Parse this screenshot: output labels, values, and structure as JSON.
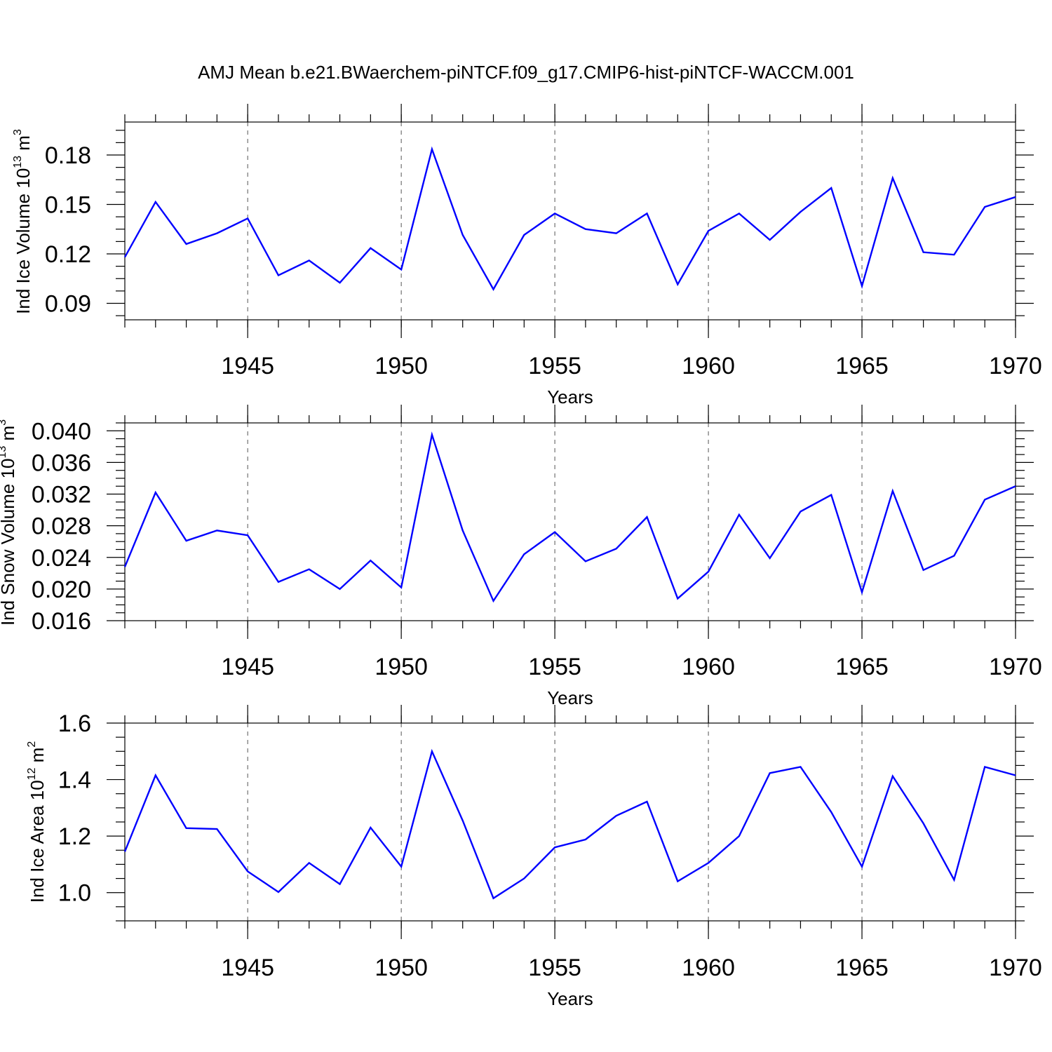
{
  "chart_data": [
    {
      "type": "line",
      "title": "AMJ Mean b.e21.BWaerchem-piNTCF.f09_g17.CMIP6-hist-piNTCF-WACCM.001",
      "ylabel": {
        "text": "Ind Ice Volume 10",
        "exponent": "13",
        "unit": " m",
        "unit_exponent": "3"
      },
      "xlabel": "Years",
      "xlim": [
        1941,
        1970
      ],
      "ylim": [
        0.08,
        0.2
      ],
      "yticks": [
        "0.09",
        "0.12",
        "0.15",
        "0.18"
      ],
      "xticks": [
        "1945",
        "1950",
        "1955",
        "1960",
        "1965",
        "1970"
      ],
      "grid": "dashed vertical at major x ticks",
      "x": [
        1941,
        1942,
        1943,
        1944,
        1945,
        1946,
        1947,
        1948,
        1949,
        1950,
        1951,
        1952,
        1953,
        1954,
        1955,
        1956,
        1957,
        1958,
        1959,
        1960,
        1961,
        1962,
        1963,
        1964,
        1965,
        1966,
        1967,
        1968,
        1969,
        1970
      ],
      "series": [
        {
          "name": "Ind Ice Volume",
          "color": "#0000ff",
          "values": [
            0.118,
            0.1515,
            0.126,
            0.1325,
            0.1415,
            0.107,
            0.116,
            0.1025,
            0.1235,
            0.1105,
            0.1835,
            0.1315,
            0.0985,
            0.1315,
            0.1445,
            0.135,
            0.1325,
            0.1445,
            0.1015,
            0.134,
            0.1445,
            0.1285,
            0.1455,
            0.16,
            0.1005,
            0.166,
            0.121,
            0.1195,
            0.1485,
            0.1545
          ]
        }
      ]
    },
    {
      "type": "line",
      "ylabel": {
        "text": "Ind Snow Volume 10",
        "exponent": "13",
        "unit": " m",
        "unit_exponent": "3"
      },
      "xlabel": "Years",
      "xlim": [
        1941,
        1970
      ],
      "ylim": [
        0.016,
        0.041
      ],
      "yticks": [
        "0.016",
        "0.020",
        "0.024",
        "0.028",
        "0.032",
        "0.036",
        "0.040"
      ],
      "xticks": [
        "1945",
        "1950",
        "1955",
        "1960",
        "1965",
        "1970"
      ],
      "grid": "dashed vertical at major x ticks",
      "x": [
        1941,
        1942,
        1943,
        1944,
        1945,
        1946,
        1947,
        1948,
        1949,
        1950,
        1951,
        1952,
        1953,
        1954,
        1955,
        1956,
        1957,
        1958,
        1959,
        1960,
        1961,
        1962,
        1963,
        1964,
        1965,
        1966,
        1967,
        1968,
        1969,
        1970
      ],
      "series": [
        {
          "name": "Ind Snow Volume",
          "color": "#0000ff",
          "values": [
            0.0228,
            0.0322,
            0.0261,
            0.0274,
            0.0268,
            0.0209,
            0.0225,
            0.02,
            0.0236,
            0.0202,
            0.0395,
            0.0274,
            0.0185,
            0.0244,
            0.0272,
            0.0235,
            0.0251,
            0.0291,
            0.0188,
            0.0222,
            0.0294,
            0.0239,
            0.0298,
            0.0319,
            0.0196,
            0.0324,
            0.0224,
            0.0242,
            0.0313,
            0.033
          ]
        }
      ]
    },
    {
      "type": "line",
      "ylabel": {
        "text": "Ind Ice Area 10",
        "exponent": "12",
        "unit": " m",
        "unit_exponent": "2"
      },
      "xlabel": "Years",
      "xlim": [
        1941,
        1970
      ],
      "ylim": [
        0.9,
        1.6
      ],
      "yticks": [
        "1.0",
        "1.2",
        "1.4",
        "1.6"
      ],
      "xticks": [
        "1945",
        "1950",
        "1955",
        "1960",
        "1965",
        "1970"
      ],
      "grid": "dashed vertical at major x ticks",
      "x": [
        1941,
        1942,
        1943,
        1944,
        1945,
        1946,
        1947,
        1948,
        1949,
        1950,
        1951,
        1952,
        1953,
        1954,
        1955,
        1956,
        1957,
        1958,
        1959,
        1960,
        1961,
        1962,
        1963,
        1964,
        1965,
        1966,
        1967,
        1968,
        1969,
        1970
      ],
      "series": [
        {
          "name": "Ind Ice Area",
          "color": "#0000ff",
          "values": [
            1.145,
            1.415,
            1.228,
            1.225,
            1.075,
            1.002,
            1.105,
            1.03,
            1.23,
            1.092,
            1.5,
            1.255,
            0.98,
            1.05,
            1.16,
            1.188,
            1.272,
            1.322,
            1.04,
            1.105,
            1.2,
            1.423,
            1.445,
            1.285,
            1.092,
            1.412,
            1.245,
            1.045,
            1.445,
            1.415
          ]
        }
      ]
    }
  ]
}
